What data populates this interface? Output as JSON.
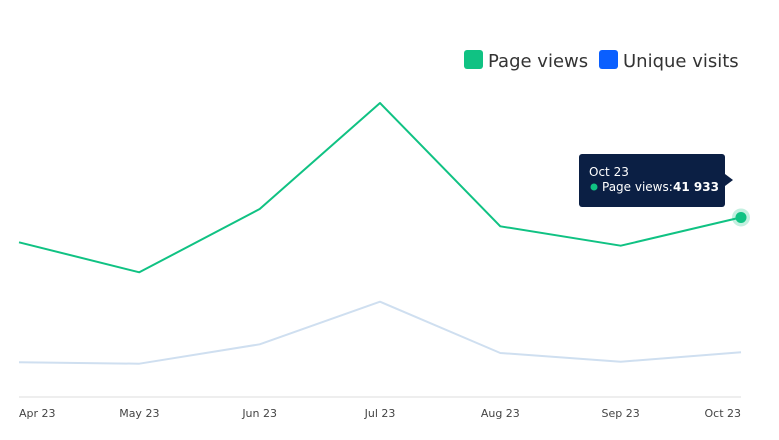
{
  "chart_data": {
    "type": "line",
    "categories": [
      "Apr 23",
      "May 23",
      "Jun 23",
      "Jul 23",
      "Aug 23",
      "Sep 23",
      "Oct 23"
    ],
    "series": [
      {
        "name": "Page views",
        "color": "#10c283",
        "values": [
          38200,
          33700,
          43200,
          59100,
          40600,
          37700,
          41933
        ]
      },
      {
        "name": "Unique visits",
        "color": "#0a5fff",
        "line_color": "#cfdff0",
        "values": [
          20200,
          20000,
          22900,
          29300,
          21600,
          20300,
          21700
        ]
      }
    ],
    "ylim": [
      15000,
      64500
    ],
    "grid": false,
    "legend_position": "top-right",
    "tooltip": {
      "title": "Oct 23",
      "series_label": "Page views:",
      "value_text": "41 933"
    }
  }
}
